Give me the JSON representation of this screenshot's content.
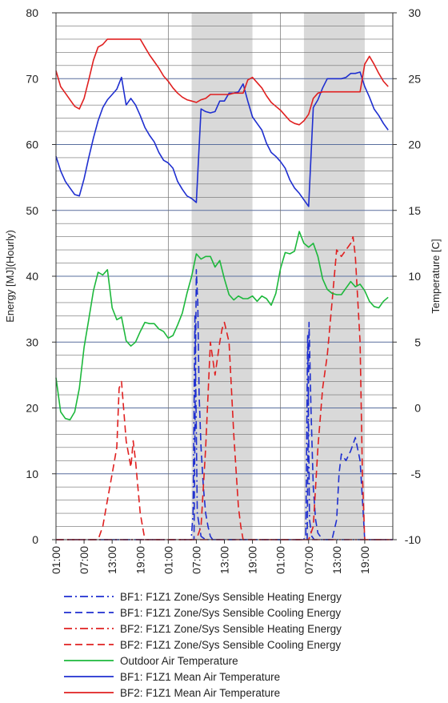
{
  "chart_data": {
    "type": "line",
    "title": "",
    "x_tick_labels": [
      "01:00",
      "07:00",
      "13:00",
      "19:00",
      "01:00",
      "07:00",
      "13:00",
      "19:00",
      "01:00",
      "07:00",
      "13:00",
      "19:00"
    ],
    "x_hours": 72,
    "shaded_hour_ranges": [
      [
        29,
        42
      ],
      [
        53,
        66
      ]
    ],
    "ylabel_left": "Energy [MJ](Hourly)",
    "ylabel_right": "Temperature [C]",
    "ylim_left": [
      0,
      80
    ],
    "ylim_right": [
      -10,
      30
    ],
    "left_ticks": [
      "0",
      "10",
      "20",
      "30",
      "40",
      "50",
      "60",
      "70",
      "80"
    ],
    "right_ticks": [
      "-10",
      "-5",
      "0",
      "5",
      "10",
      "15",
      "20",
      "25",
      "30"
    ],
    "grid": true,
    "legend_position": "bottom",
    "series": [
      {
        "name": "BF1: F1Z1 Zone/Sys Sensible Heating Energy",
        "axis": "left",
        "color": "#1f2fd0",
        "dash": "dashdot",
        "x": [
          0,
          28.9,
          29.3,
          29.7,
          30.2,
          31,
          32,
          33,
          33.5,
          52.9,
          53.4,
          53.8,
          54.2,
          54.7,
          55.2,
          72
        ],
        "y": [
          0,
          0,
          4,
          34,
          4,
          0.5,
          0,
          0,
          0,
          0,
          0.5,
          31,
          3,
          0.5,
          0,
          0
        ]
      },
      {
        "name": "BF1: F1Z1 Zone/Sys Sensible Cooling Energy",
        "axis": "left",
        "color": "#1f2fd0",
        "dash": "dash",
        "x": [
          0,
          29.5,
          30,
          30.3,
          30.6,
          31,
          31.5,
          32,
          32.5,
          33,
          33.5,
          53.7,
          54.1,
          54.5,
          55,
          55.5,
          56,
          57,
          58,
          59,
          60,
          60.5,
          61,
          62,
          63,
          64,
          65,
          65.6,
          66,
          72
        ],
        "y": [
          0,
          0,
          41,
          36,
          22,
          14,
          8,
          4,
          2,
          0.5,
          0,
          0,
          33,
          20,
          8,
          3,
          1,
          0,
          0,
          0,
          3,
          10,
          13,
          12,
          13.5,
          15.5,
          12,
          5,
          0,
          0
        ]
      },
      {
        "name": "BF2: F1Z1 Zone/Sys Sensible Heating Energy",
        "axis": "left",
        "color": "#e02020",
        "dash": "dashdot",
        "x": [
          0,
          72
        ],
        "y": [
          0,
          0
        ]
      },
      {
        "name": "BF2: F1Z1 Zone/Sys Sensible Cooling Energy",
        "axis": "left",
        "color": "#e02020",
        "dash": "dash",
        "x": [
          0,
          9,
          10,
          11,
          12,
          13,
          13.5,
          14,
          15,
          16,
          16.5,
          17,
          18,
          19,
          30,
          31,
          32,
          33,
          34,
          35,
          35.5,
          36,
          37,
          38,
          39,
          39.5,
          40,
          41,
          42,
          54,
          55,
          56,
          57,
          58,
          59,
          60,
          61,
          62,
          63,
          63.5,
          64,
          65,
          65.5,
          66,
          72
        ],
        "y": [
          0,
          0,
          2,
          6,
          10,
          14,
          23,
          24,
          15,
          11,
          15,
          12,
          4,
          0,
          0,
          2,
          14,
          30,
          25,
          30,
          32,
          33,
          30,
          16,
          5,
          2,
          0,
          0,
          0,
          0,
          2,
          14,
          23,
          28,
          36,
          44,
          43,
          44,
          45,
          46,
          43,
          30,
          10,
          0,
          0
        ]
      },
      {
        "name": "Outdoor Air Temperature",
        "axis": "right",
        "color": "#1db83c",
        "dash": "solid",
        "x": [
          0,
          1,
          2,
          3,
          4,
          5,
          6,
          7,
          8,
          9,
          10,
          11,
          12,
          13,
          14,
          15,
          16,
          17,
          18,
          19,
          20,
          21,
          22,
          23,
          24,
          25,
          26,
          27,
          28,
          29,
          30,
          31,
          32,
          33,
          34,
          35,
          36,
          37,
          38,
          39,
          40,
          41,
          42,
          43,
          44,
          45,
          46,
          47,
          48,
          49,
          50,
          51,
          52,
          53,
          54,
          55,
          56,
          57,
          58,
          59,
          60,
          61,
          62,
          63,
          64,
          65,
          66,
          67,
          68,
          69,
          70,
          71
        ],
        "y": [
          2.3,
          -0.3,
          -0.8,
          -0.9,
          -0.3,
          1.5,
          4.6,
          6.7,
          8.9,
          10.3,
          10.1,
          10.5,
          7.6,
          6.7,
          6.9,
          5.1,
          4.7,
          5,
          5.8,
          6.5,
          6.4,
          6.4,
          6,
          5.8,
          5.3,
          5.5,
          6.3,
          7.2,
          8.7,
          10,
          11.7,
          11.3,
          11.5,
          11.5,
          10.7,
          11.2,
          9.8,
          8.6,
          8.2,
          8.5,
          8.3,
          8.3,
          8.5,
          8.1,
          8.5,
          8.3,
          7.8,
          8.7,
          10.6,
          11.8,
          11.7,
          11.9,
          13.4,
          12.5,
          12.2,
          12.5,
          11.5,
          9.8,
          9,
          8.7,
          8.6,
          8.6,
          9.1,
          9.6,
          9.2,
          9.4,
          8.9,
          8.1,
          7.7,
          7.6,
          8.1,
          8.4
        ],
        "_note": ""
      },
      {
        "name": "BF1: F1Z1 Mean Air Temperature",
        "axis": "right",
        "color": "#1f2fd0",
        "dash": "solid",
        "x": [
          0,
          1,
          2,
          3,
          4,
          5,
          6,
          7,
          8,
          9,
          10,
          11,
          12,
          13,
          14,
          15,
          16,
          17,
          18,
          19,
          20,
          21,
          22,
          23,
          24,
          25,
          26,
          27,
          28,
          29,
          30,
          31,
          32,
          33,
          34,
          35,
          36,
          37,
          38,
          39,
          40,
          41,
          42,
          43,
          44,
          45,
          46,
          47,
          48,
          49,
          50,
          51,
          52,
          53,
          54,
          55,
          56,
          57,
          58,
          59,
          60,
          61,
          62,
          63,
          64,
          65,
          66,
          67,
          68,
          69,
          70,
          71
        ],
        "y": [
          19.1,
          18,
          17.2,
          16.7,
          16.2,
          16.1,
          17.4,
          19,
          20.5,
          21.8,
          22.8,
          23.4,
          23.8,
          24.2,
          25.1,
          23,
          23.5,
          23,
          22.2,
          21.3,
          20.7,
          20.2,
          19.4,
          18.8,
          18.6,
          18.2,
          17.2,
          16.6,
          16.1,
          15.9,
          15.6,
          22.7,
          22.5,
          22.4,
          22.5,
          23.3,
          23.3,
          23.9,
          23.9,
          24,
          24.6,
          23.3,
          22.1,
          21.6,
          21.1,
          20.1,
          19.4,
          19.1,
          18.7,
          18.2,
          17.3,
          16.7,
          16.3,
          15.8,
          15.3,
          22.8,
          23.4,
          24.3,
          25,
          25,
          25,
          25,
          25.1,
          25.4,
          25.4,
          25.5,
          24.4,
          23.6,
          22.7,
          22.2,
          21.6,
          21.1
        ],
        "_note": ""
      },
      {
        "name": "BF2: F1Z1 Mean Air Temperature",
        "axis": "right",
        "color": "#e02020",
        "dash": "solid",
        "x": [
          0,
          1,
          2,
          3,
          4,
          5,
          6,
          7,
          8,
          9,
          10,
          11,
          12,
          13,
          14,
          15,
          16,
          17,
          18,
          19,
          20,
          21,
          22,
          23,
          24,
          25,
          26,
          27,
          28,
          29,
          30,
          31,
          32,
          33,
          34,
          35,
          36,
          37,
          38,
          39,
          40,
          41,
          42,
          43,
          44,
          45,
          46,
          47,
          48,
          49,
          50,
          51,
          52,
          53,
          54,
          55,
          56,
          57,
          58,
          59,
          60,
          61,
          62,
          63,
          64,
          65,
          66,
          67,
          68,
          69,
          70,
          71
        ],
        "y": [
          25.6,
          24.4,
          23.9,
          23.4,
          22.9,
          22.7,
          23.5,
          24.9,
          26.4,
          27.4,
          27.6,
          28,
          28,
          28,
          28,
          28,
          28,
          28,
          28,
          27.4,
          26.8,
          26.3,
          25.8,
          25.2,
          24.8,
          24.3,
          23.9,
          23.6,
          23.4,
          23.3,
          23.2,
          23.4,
          23.5,
          23.8,
          23.8,
          23.8,
          23.8,
          23.8,
          23.9,
          23.9,
          23.9,
          24.9,
          25.1,
          24.7,
          24.3,
          23.7,
          23.2,
          22.9,
          22.6,
          22.2,
          21.8,
          21.6,
          21.5,
          21.8,
          22.3,
          23.5,
          23.9,
          24,
          24,
          24,
          24,
          24,
          24,
          24,
          24,
          24,
          26.1,
          26.7,
          26.1,
          25.4,
          24.8,
          24.4
        ],
        "_note": ""
      }
    ]
  }
}
